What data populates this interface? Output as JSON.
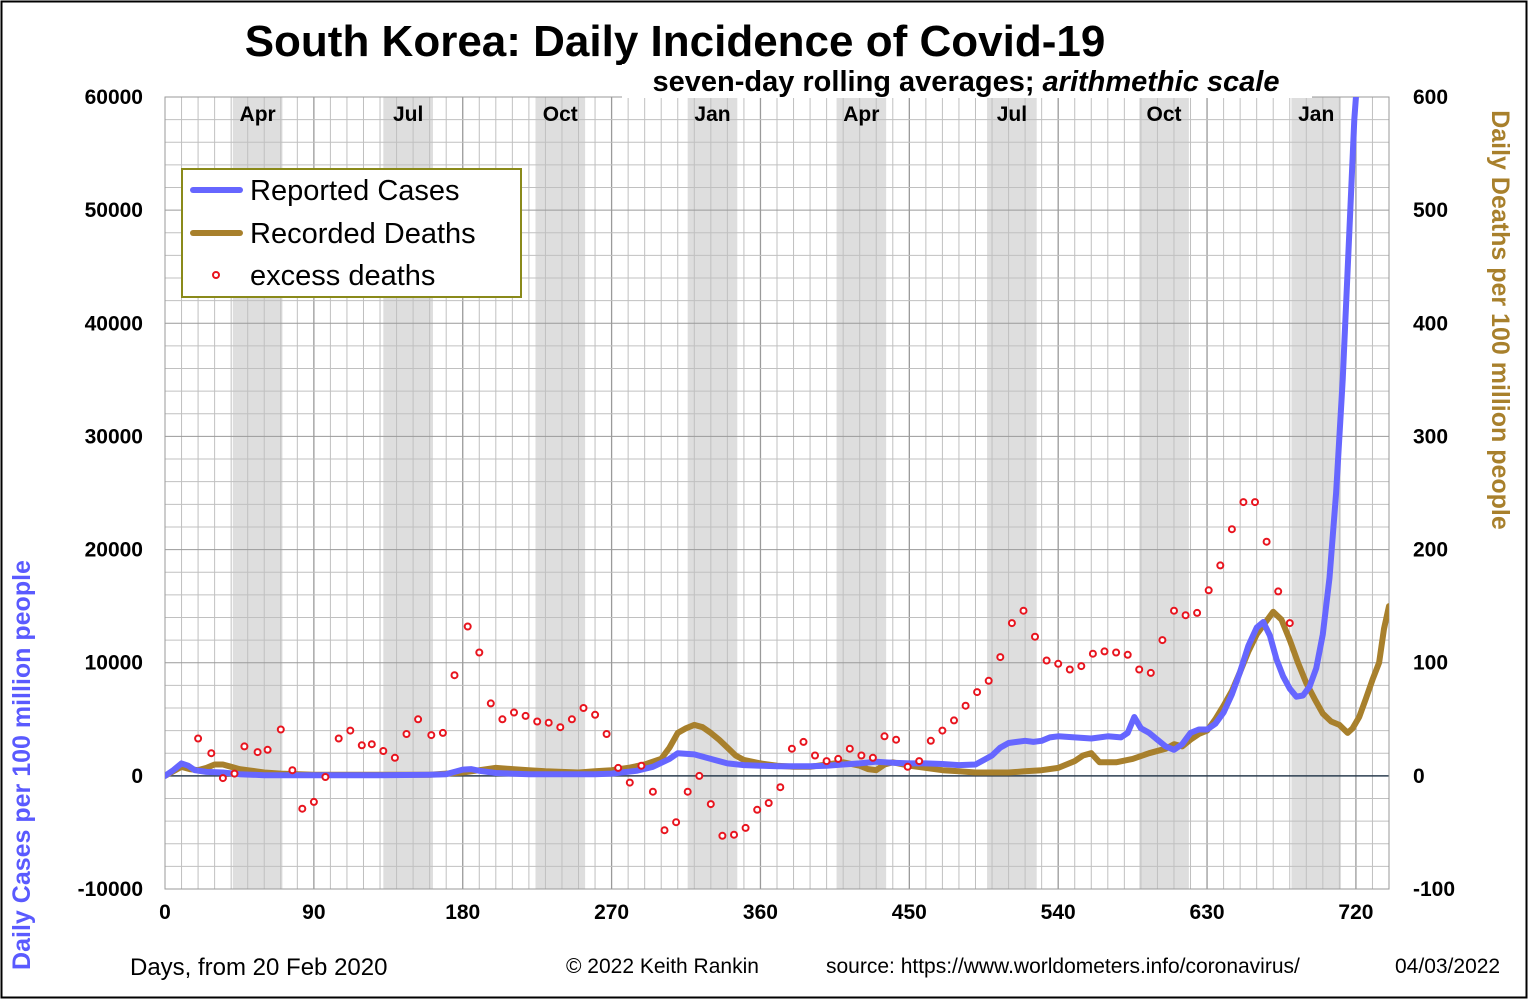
{
  "chart_data": {
    "type": "line",
    "title": "South Korea: Daily Incidence of Covid-19",
    "subtitle_plain": "seven-day rolling averages; ",
    "subtitle_italic": "arithmethic scale",
    "ylabel_left": "Daily Cases per 100 million people",
    "ylabel_right": "Daily Deaths per 100 million people",
    "xlabel": "Days,  from 20 Feb 2020",
    "credit": "© 2022  Keith Rankin",
    "source": "source: https://www.worldometers.info/coronavirus/",
    "date": "04/03/2022",
    "xlim": [
      0,
      740
    ],
    "ylim_left": [
      -10000,
      60000
    ],
    "ylim_right": [
      -100,
      600
    ],
    "x_ticks": [
      "0",
      "90",
      "180",
      "270",
      "360",
      "450",
      "540",
      "630",
      "720"
    ],
    "y_ticks_left": [
      "-10000",
      "0",
      "10000",
      "20000",
      "30000",
      "40000",
      "50000",
      "60000"
    ],
    "y_ticks_right": [
      "-100",
      "0",
      "100",
      "200",
      "300",
      "400",
      "500",
      "600"
    ],
    "grid": true,
    "legend_position": "top-left",
    "month_bands": [
      {
        "label": "Apr",
        "start": 41,
        "end": 71
      },
      {
        "label": "Jul",
        "start": 132,
        "end": 162
      },
      {
        "label": "Oct",
        "start": 224,
        "end": 254
      },
      {
        "label": "Jan",
        "start": 316,
        "end": 346
      },
      {
        "label": "Apr",
        "start": 406,
        "end": 436
      },
      {
        "label": "Jul",
        "start": 497,
        "end": 527
      },
      {
        "label": "Oct",
        "start": 589,
        "end": 619
      },
      {
        "label": "Jan",
        "start": 681,
        "end": 711
      }
    ],
    "series": [
      {
        "name": "Reported Cases",
        "axis": "left",
        "color": "#6666ff",
        "points": [
          [
            0,
            0
          ],
          [
            5,
            500
          ],
          [
            10,
            1100
          ],
          [
            14,
            900
          ],
          [
            18,
            500
          ],
          [
            25,
            350
          ],
          [
            35,
            300
          ],
          [
            45,
            150
          ],
          [
            60,
            60
          ],
          [
            90,
            60
          ],
          [
            130,
            60
          ],
          [
            160,
            100
          ],
          [
            170,
            150
          ],
          [
            175,
            350
          ],
          [
            180,
            550
          ],
          [
            185,
            600
          ],
          [
            190,
            450
          ],
          [
            200,
            250
          ],
          [
            220,
            150
          ],
          [
            240,
            150
          ],
          [
            260,
            150
          ],
          [
            270,
            200
          ],
          [
            285,
            450
          ],
          [
            295,
            800
          ],
          [
            305,
            1500
          ],
          [
            310,
            2000
          ],
          [
            320,
            1900
          ],
          [
            330,
            1500
          ],
          [
            340,
            1100
          ],
          [
            350,
            950
          ],
          [
            360,
            900
          ],
          [
            370,
            850
          ],
          [
            380,
            850
          ],
          [
            390,
            850
          ],
          [
            400,
            900
          ],
          [
            410,
            1000
          ],
          [
            420,
            1100
          ],
          [
            430,
            1250
          ],
          [
            440,
            1150
          ],
          [
            450,
            1100
          ],
          [
            460,
            1100
          ],
          [
            470,
            1050
          ],
          [
            480,
            950
          ],
          [
            490,
            1000
          ],
          [
            495,
            1400
          ],
          [
            500,
            1800
          ],
          [
            505,
            2500
          ],
          [
            510,
            2900
          ],
          [
            515,
            3000
          ],
          [
            520,
            3100
          ],
          [
            525,
            3000
          ],
          [
            530,
            3100
          ],
          [
            535,
            3400
          ],
          [
            540,
            3500
          ],
          [
            550,
            3400
          ],
          [
            560,
            3300
          ],
          [
            570,
            3500
          ],
          [
            578,
            3400
          ],
          [
            582,
            3800
          ],
          [
            586,
            5200
          ],
          [
            590,
            4200
          ],
          [
            595,
            3800
          ],
          [
            600,
            3200
          ],
          [
            605,
            2600
          ],
          [
            610,
            2300
          ],
          [
            615,
            2800
          ],
          [
            620,
            3800
          ],
          [
            625,
            4100
          ],
          [
            630,
            4100
          ],
          [
            635,
            4600
          ],
          [
            640,
            5600
          ],
          [
            645,
            7200
          ],
          [
            650,
            9200
          ],
          [
            655,
            11500
          ],
          [
            660,
            13100
          ],
          [
            664,
            13600
          ],
          [
            668,
            12400
          ],
          [
            672,
            10300
          ],
          [
            676,
            8800
          ],
          [
            680,
            7700
          ],
          [
            684,
            7000
          ],
          [
            688,
            7100
          ],
          [
            692,
            7900
          ],
          [
            696,
            9500
          ],
          [
            700,
            12500
          ],
          [
            704,
            17500
          ],
          [
            708,
            25000
          ],
          [
            712,
            35000
          ],
          [
            716,
            48000
          ],
          [
            719,
            58000
          ],
          [
            721,
            62000
          ]
        ]
      },
      {
        "name": "Recorded Deaths",
        "axis": "right",
        "color": "#a8802c",
        "points": [
          [
            0,
            0
          ],
          [
            5,
            4
          ],
          [
            10,
            8
          ],
          [
            15,
            6
          ],
          [
            20,
            5
          ],
          [
            25,
            7
          ],
          [
            30,
            10
          ],
          [
            35,
            10
          ],
          [
            40,
            8
          ],
          [
            45,
            6
          ],
          [
            50,
            5
          ],
          [
            55,
            4
          ],
          [
            60,
            3
          ],
          [
            70,
            2
          ],
          [
            90,
            1
          ],
          [
            130,
            1
          ],
          [
            160,
            1
          ],
          [
            170,
            2
          ],
          [
            180,
            3
          ],
          [
            190,
            5
          ],
          [
            200,
            7
          ],
          [
            210,
            6
          ],
          [
            220,
            5
          ],
          [
            230,
            4
          ],
          [
            250,
            3
          ],
          [
            260,
            4
          ],
          [
            270,
            5
          ],
          [
            280,
            7
          ],
          [
            290,
            10
          ],
          [
            300,
            15
          ],
          [
            305,
            25
          ],
          [
            310,
            38
          ],
          [
            315,
            42
          ],
          [
            320,
            45
          ],
          [
            325,
            43
          ],
          [
            330,
            38
          ],
          [
            335,
            32
          ],
          [
            340,
            25
          ],
          [
            345,
            18
          ],
          [
            350,
            14
          ],
          [
            360,
            11
          ],
          [
            370,
            9
          ],
          [
            380,
            8
          ],
          [
            390,
            8
          ],
          [
            400,
            10
          ],
          [
            410,
            12
          ],
          [
            420,
            9
          ],
          [
            425,
            6
          ],
          [
            430,
            5
          ],
          [
            435,
            10
          ],
          [
            440,
            12
          ],
          [
            450,
            9
          ],
          [
            460,
            7
          ],
          [
            470,
            5
          ],
          [
            480,
            4
          ],
          [
            490,
            3
          ],
          [
            500,
            3
          ],
          [
            510,
            3
          ],
          [
            520,
            4
          ],
          [
            530,
            5
          ],
          [
            540,
            7
          ],
          [
            550,
            13
          ],
          [
            555,
            18
          ],
          [
            560,
            20
          ],
          [
            565,
            12
          ],
          [
            575,
            12
          ],
          [
            585,
            15
          ],
          [
            595,
            20
          ],
          [
            605,
            24
          ],
          [
            610,
            28
          ],
          [
            615,
            26
          ],
          [
            620,
            32
          ],
          [
            625,
            37
          ],
          [
            630,
            40
          ],
          [
            635,
            50
          ],
          [
            640,
            62
          ],
          [
            645,
            75
          ],
          [
            650,
            92
          ],
          [
            655,
            110
          ],
          [
            660,
            125
          ],
          [
            665,
            135
          ],
          [
            670,
            145
          ],
          [
            675,
            138
          ],
          [
            680,
            120
          ],
          [
            685,
            100
          ],
          [
            690,
            82
          ],
          [
            695,
            68
          ],
          [
            700,
            55
          ],
          [
            705,
            48
          ],
          [
            710,
            45
          ],
          [
            715,
            38
          ],
          [
            718,
            42
          ],
          [
            722,
            52
          ],
          [
            726,
            68
          ],
          [
            730,
            85
          ],
          [
            734,
            100
          ],
          [
            737,
            130
          ],
          [
            740,
            150
          ]
        ]
      },
      {
        "name": "excess deaths",
        "axis": "right",
        "color": "#e8141e",
        "markers_only": true,
        "points": [
          [
            20,
            33
          ],
          [
            28,
            20
          ],
          [
            35,
            -2
          ],
          [
            42,
            2
          ],
          [
            48,
            26
          ],
          [
            56,
            21
          ],
          [
            62,
            23
          ],
          [
            70,
            41
          ],
          [
            77,
            5
          ],
          [
            83,
            -29
          ],
          [
            90,
            -23
          ],
          [
            97,
            -1
          ],
          [
            105,
            33
          ],
          [
            112,
            40
          ],
          [
            119,
            27
          ],
          [
            125,
            28
          ],
          [
            132,
            22
          ],
          [
            139,
            16
          ],
          [
            146,
            37
          ],
          [
            153,
            50
          ],
          [
            161,
            36
          ],
          [
            168,
            38
          ],
          [
            175,
            89
          ],
          [
            183,
            132
          ],
          [
            190,
            109
          ],
          [
            197,
            64
          ],
          [
            204,
            50
          ],
          [
            211,
            56
          ],
          [
            218,
            53
          ],
          [
            225,
            48
          ],
          [
            232,
            47
          ],
          [
            239,
            43
          ],
          [
            246,
            50
          ],
          [
            253,
            60
          ],
          [
            260,
            54
          ],
          [
            267,
            37
          ],
          [
            274,
            7
          ],
          [
            281,
            -6
          ],
          [
            288,
            9
          ],
          [
            295,
            -14
          ],
          [
            302,
            -48
          ],
          [
            309,
            -41
          ],
          [
            316,
            -14
          ],
          [
            323,
            0
          ],
          [
            330,
            -25
          ],
          [
            337,
            -53
          ],
          [
            344,
            -52
          ],
          [
            351,
            -46
          ],
          [
            358,
            -30
          ],
          [
            365,
            -24
          ],
          [
            372,
            -10
          ],
          [
            379,
            24
          ],
          [
            386,
            30
          ],
          [
            393,
            18
          ],
          [
            400,
            13
          ],
          [
            407,
            15
          ],
          [
            414,
            24
          ],
          [
            421,
            18
          ],
          [
            428,
            16
          ],
          [
            435,
            35
          ],
          [
            442,
            32
          ],
          [
            449,
            8
          ],
          [
            456,
            13
          ],
          [
            463,
            31
          ],
          [
            470,
            40
          ],
          [
            477,
            49
          ],
          [
            484,
            62
          ],
          [
            491,
            74
          ],
          [
            498,
            84
          ],
          [
            505,
            105
          ],
          [
            512,
            135
          ],
          [
            519,
            146
          ],
          [
            526,
            123
          ],
          [
            533,
            102
          ],
          [
            540,
            99
          ],
          [
            547,
            94
          ],
          [
            554,
            97
          ],
          [
            561,
            108
          ],
          [
            568,
            110
          ],
          [
            575,
            109
          ],
          [
            582,
            107
          ],
          [
            589,
            94
          ],
          [
            596,
            91
          ],
          [
            603,
            120
          ],
          [
            610,
            146
          ],
          [
            617,
            142
          ],
          [
            624,
            144
          ],
          [
            631,
            164
          ],
          [
            638,
            186
          ],
          [
            645,
            218
          ],
          [
            652,
            242
          ],
          [
            659,
            242
          ],
          [
            666,
            207
          ],
          [
            673,
            163
          ],
          [
            680,
            135
          ]
        ]
      }
    ]
  }
}
